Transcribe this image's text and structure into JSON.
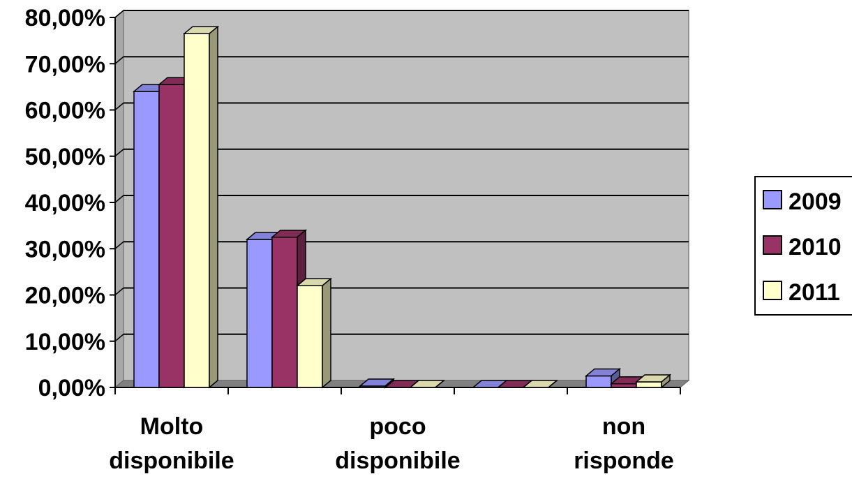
{
  "chart_data": {
    "type": "bar",
    "categories": [
      [
        "Molto",
        "disponibile"
      ],
      [
        "",
        ""
      ],
      [
        "poco",
        "disponibile"
      ],
      [
        "",
        ""
      ],
      [
        "non",
        "risponde"
      ]
    ],
    "series": [
      {
        "name": "2009",
        "values": [
          64.0,
          32.0,
          0.3,
          0.0,
          2.5
        ],
        "color": "#9999ff"
      },
      {
        "name": "2010",
        "values": [
          65.5,
          32.5,
          0.0,
          0.0,
          0.8
        ],
        "color": "#993366"
      },
      {
        "name": "2011",
        "values": [
          76.5,
          22.0,
          0.0,
          0.0,
          1.2
        ],
        "color": "#ffffcc"
      }
    ],
    "y_ticks": [
      "0,00%",
      "10,00%",
      "20,00%",
      "30,00%",
      "40,00%",
      "50,00%",
      "60,00%",
      "70,00%",
      "80,00%"
    ],
    "ylim": [
      0,
      80
    ],
    "grid": true,
    "legend_position": "right",
    "plot_background": "#c0c0c0"
  }
}
